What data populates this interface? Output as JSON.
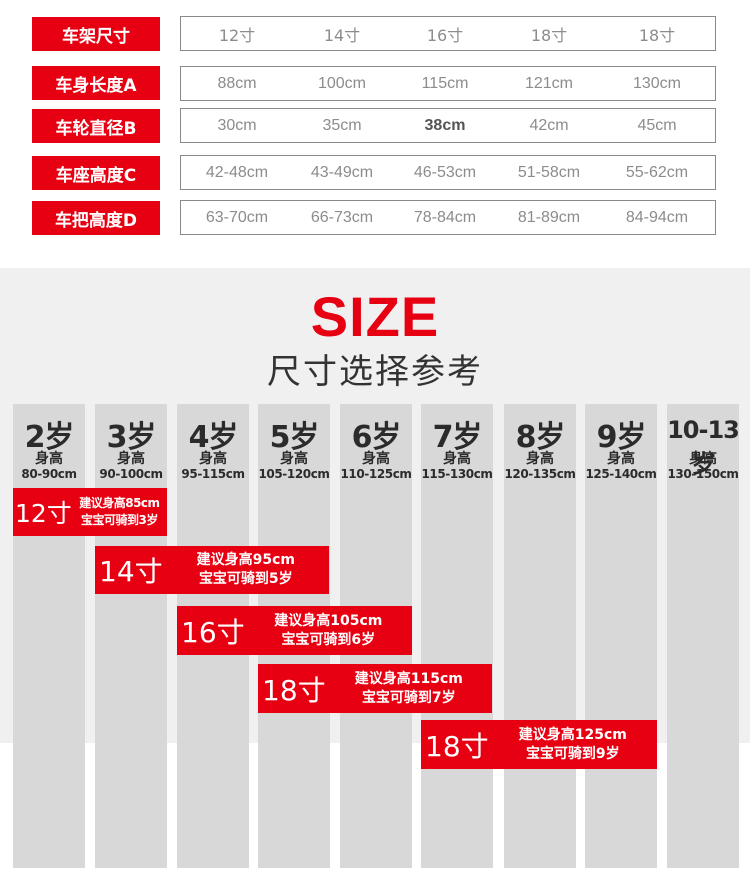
{
  "spec_table": {
    "rows": [
      {
        "label": "车架尺寸",
        "values": [
          "12寸",
          "14寸",
          "16寸",
          "18寸",
          "18寸"
        ]
      },
      {
        "label": "车身长度A",
        "values": [
          "88cm",
          "100cm",
          "115cm",
          "121cm",
          "130cm"
        ]
      },
      {
        "label": "车轮直径B",
        "values": [
          "30cm",
          "35cm",
          "38cm",
          "42cm",
          "45cm"
        ]
      },
      {
        "label": "车座高度C",
        "values": [
          "42-48cm",
          "43-49cm",
          "46-53cm",
          "51-58cm",
          "55-62cm"
        ]
      },
      {
        "label": "车把高度D",
        "values": [
          "63-70cm",
          "66-73cm",
          "78-84cm",
          "81-89cm",
          "84-94cm"
        ]
      }
    ]
  },
  "size_section": {
    "title": "SIZE",
    "subtitle": "尺寸选择参考",
    "height_label": "身高",
    "ages": [
      {
        "age": "2岁",
        "range": "80-90cm"
      },
      {
        "age": "3岁",
        "range": "90-100cm"
      },
      {
        "age": "4岁",
        "range": "95-115cm"
      },
      {
        "age": "5岁",
        "range": "105-120cm"
      },
      {
        "age": "6岁",
        "range": "110-125cm"
      },
      {
        "age": "7岁",
        "range": "115-130cm"
      },
      {
        "age": "8岁",
        "range": "120-135cm"
      },
      {
        "age": "9岁",
        "range": "125-140cm"
      },
      {
        "age": "10-13岁",
        "range": "130-150cm"
      }
    ],
    "recommendations": [
      {
        "size": "12寸",
        "line1": "建议身高85cm",
        "line2": "宝宝可骑到3岁"
      },
      {
        "size": "14寸",
        "line1": "建议身高95cm",
        "line2": "宝宝可骑到5岁"
      },
      {
        "size": "16寸",
        "line1": "建议身高105cm",
        "line2": "宝宝可骑到6岁"
      },
      {
        "size": "18寸",
        "line1": "建议身高115cm",
        "line2": "宝宝可骑到7岁"
      },
      {
        "size": "18寸",
        "line1": "建议身高125cm",
        "line2": "宝宝可骑到9岁"
      }
    ]
  },
  "colors": {
    "accent": "#e60012",
    "column": "#d8d8d8",
    "panel": "#f0f0f0"
  }
}
